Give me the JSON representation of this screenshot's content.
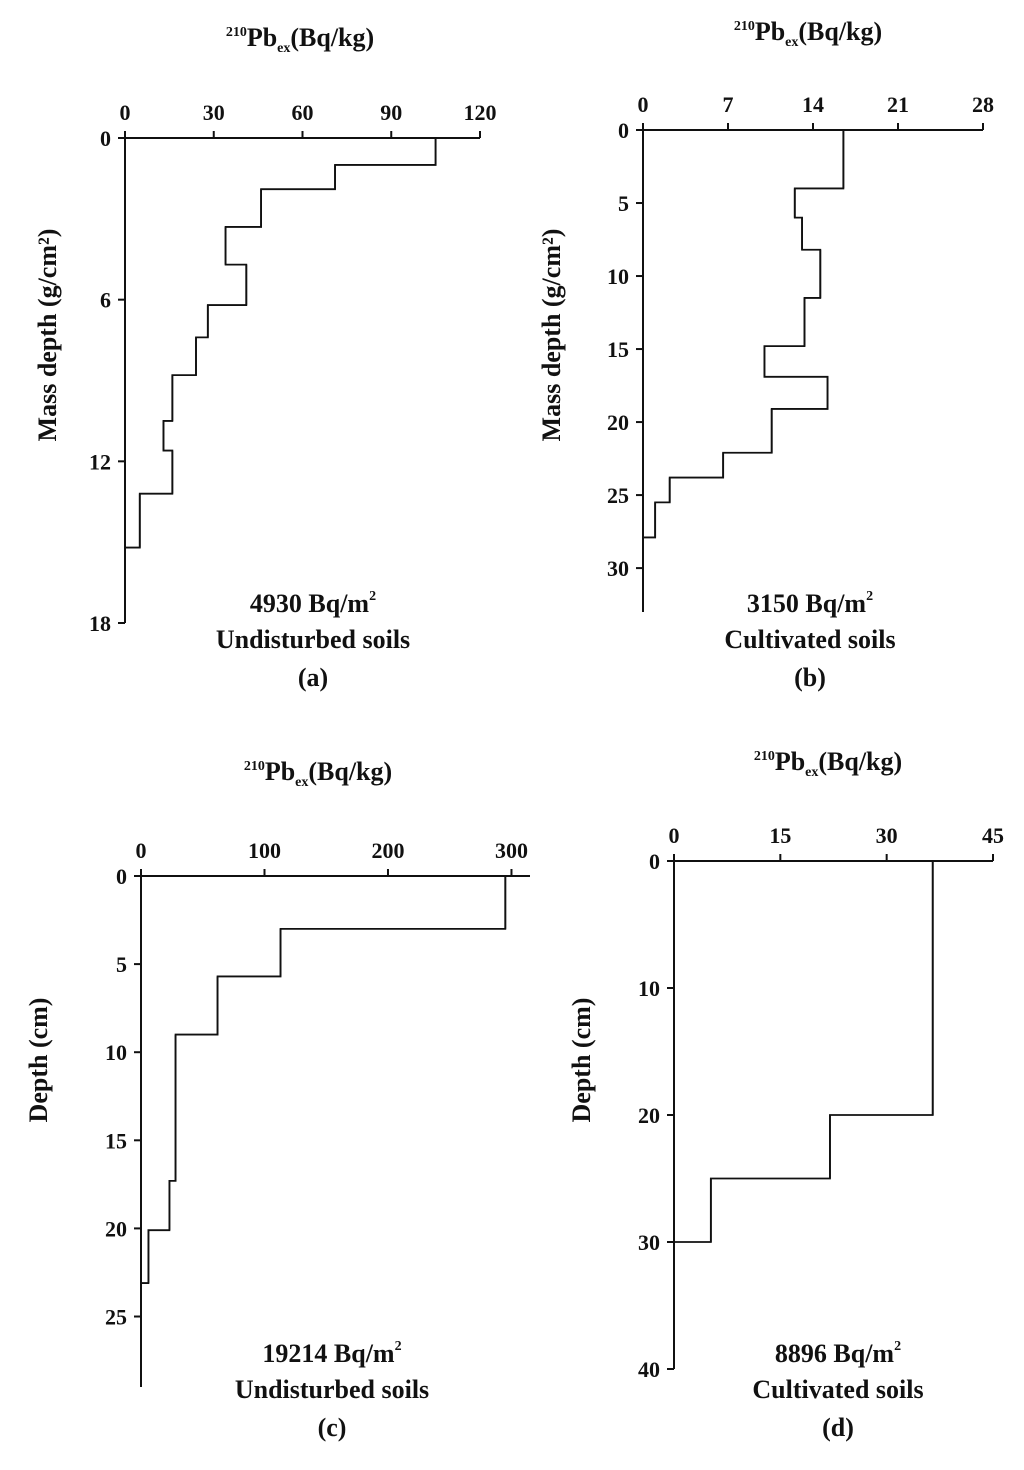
{
  "chart_data": [
    {
      "id": "a",
      "type": "line",
      "title": "",
      "xlabel": {
        "sup": "210",
        "base": "Pb",
        "sub": "ex",
        "unit": "(Bq/kg)"
      },
      "ylabel": "Mass depth (g/cm²)",
      "xlim": [
        0,
        120
      ],
      "ylim": [
        0,
        18
      ],
      "x_ticks": [
        0,
        30,
        60,
        90,
        120
      ],
      "y_ticks": [
        0,
        6,
        12,
        18
      ],
      "series": [
        {
          "steps": [
            {
              "y0": 0.0,
              "y1": 1.0,
              "x": 105
            },
            {
              "y0": 1.0,
              "y1": 1.9,
              "x": 71
            },
            {
              "y0": 1.9,
              "y1": 3.3,
              "x": 46
            },
            {
              "y0": 3.3,
              "y1": 4.7,
              "x": 34
            },
            {
              "y0": 4.7,
              "y1": 6.2,
              "x": 41
            },
            {
              "y0": 6.2,
              "y1": 7.4,
              "x": 28
            },
            {
              "y0": 7.4,
              "y1": 8.8,
              "x": 24
            },
            {
              "y0": 8.8,
              "y1": 10.5,
              "x": 16
            },
            {
              "y0": 10.5,
              "y1": 11.6,
              "x": 13
            },
            {
              "y0": 11.6,
              "y1": 13.2,
              "x": 16
            },
            {
              "y0": 13.2,
              "y1": 15.2,
              "x": 5
            },
            {
              "y0": 15.2,
              "y1": 15.2,
              "x": 0
            }
          ]
        }
      ],
      "inventory": "4930 Bq/m",
      "inventory_sup": "2",
      "soil": "Undisturbed soils",
      "panel_label": "(a)"
    },
    {
      "id": "b",
      "type": "line",
      "title": "",
      "xlabel": {
        "sup": "210",
        "base": "Pb",
        "sub": "ex",
        "unit": "(Bq/kg)"
      },
      "ylabel": "Mass depth (g/cm²)",
      "xlim": [
        0,
        28
      ],
      "ylim": [
        0,
        31.5
      ],
      "x_ticks": [
        0,
        7,
        14,
        21,
        28
      ],
      "y_ticks": [
        0,
        5,
        10,
        15,
        20,
        25,
        30
      ],
      "series": [
        {
          "steps": [
            {
              "y0": 0.0,
              "y1": 4.0,
              "x": 16.5
            },
            {
              "y0": 4.0,
              "y1": 6.0,
              "x": 12.5
            },
            {
              "y0": 6.0,
              "y1": 8.2,
              "x": 13.1
            },
            {
              "y0": 8.2,
              "y1": 11.5,
              "x": 14.6
            },
            {
              "y0": 11.5,
              "y1": 14.8,
              "x": 13.3
            },
            {
              "y0": 14.8,
              "y1": 16.9,
              "x": 10.0
            },
            {
              "y0": 16.9,
              "y1": 19.1,
              "x": 15.2
            },
            {
              "y0": 19.1,
              "y1": 22.1,
              "x": 10.6
            },
            {
              "y0": 22.1,
              "y1": 23.8,
              "x": 6.6
            },
            {
              "y0": 23.8,
              "y1": 25.5,
              "x": 2.2
            },
            {
              "y0": 25.5,
              "y1": 27.9,
              "x": 1.0
            },
            {
              "y0": 27.9,
              "y1": 27.9,
              "x": 0
            }
          ]
        }
      ],
      "inventory": "3150 Bq/m",
      "inventory_sup": "2",
      "soil": "Cultivated soils",
      "panel_label": "(b)"
    },
    {
      "id": "c",
      "type": "line",
      "title": "",
      "xlabel": {
        "sup": "210",
        "base": "Pb",
        "sub": "ex",
        "unit": "(Bq/kg)"
      },
      "ylabel": "Depth (cm)",
      "xlim": [
        0,
        315
      ],
      "ylim": [
        0,
        29
      ],
      "x_ticks": [
        0,
        100,
        200,
        300
      ],
      "y_ticks": [
        0,
        5,
        10,
        15,
        20,
        25
      ],
      "series": [
        {
          "steps": [
            {
              "y0": 0.0,
              "y1": 3.0,
              "x": 295
            },
            {
              "y0": 3.0,
              "y1": 5.7,
              "x": 113
            },
            {
              "y0": 5.7,
              "y1": 9.0,
              "x": 62
            },
            {
              "y0": 9.0,
              "y1": 17.3,
              "x": 28
            },
            {
              "y0": 17.3,
              "y1": 20.1,
              "x": 23
            },
            {
              "y0": 20.1,
              "y1": 23.1,
              "x": 6
            },
            {
              "y0": 23.1,
              "y1": 23.1,
              "x": 0
            }
          ]
        }
      ],
      "inventory": "19214 Bq/m",
      "inventory_sup": "2",
      "soil": "Undisturbed  soils",
      "panel_label": "(c)"
    },
    {
      "id": "d",
      "type": "line",
      "title": "",
      "xlabel": {
        "sup": "210",
        "base": "Pb",
        "sub": "ex",
        "unit": "(Bq/kg)"
      },
      "ylabel": "Depth (cm)",
      "xlim": [
        0,
        45
      ],
      "ylim": [
        0,
        40
      ],
      "x_ticks": [
        0,
        15,
        30,
        45
      ],
      "y_ticks": [
        0,
        10,
        20,
        30,
        40
      ],
      "series": [
        {
          "steps": [
            {
              "y0": 0.0,
              "y1": 20.0,
              "x": 36.5
            },
            {
              "y0": 20.0,
              "y1": 25.0,
              "x": 22.0
            },
            {
              "y0": 25.0,
              "y1": 30.0,
              "x": 5.2
            },
            {
              "y0": 30.0,
              "y1": 30.0,
              "x": 0
            }
          ]
        }
      ],
      "inventory": "8896 Bq/m",
      "inventory_sup": "2",
      "soil": "Cultivated soils",
      "panel_label": "(d)"
    }
  ]
}
